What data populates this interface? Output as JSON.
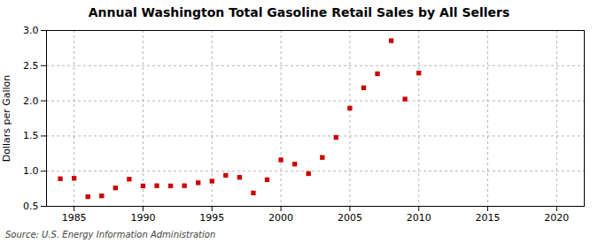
{
  "chart_data": {
    "type": "scatter",
    "title": "Annual Washington Total Gasoline Retail Sales by All Sellers",
    "ylabel": "Dollars per Gallon",
    "source": "Source: U.S. Energy Information Administration",
    "x": [
      1984,
      1985,
      1986,
      1987,
      1988,
      1989,
      1990,
      1991,
      1992,
      1993,
      1994,
      1995,
      1996,
      1997,
      1998,
      1999,
      2000,
      2001,
      2002,
      2003,
      2004,
      2005,
      2006,
      2007,
      2008,
      2009,
      2010
    ],
    "values": [
      0.893,
      0.899,
      0.637,
      0.649,
      0.762,
      0.886,
      0.79,
      0.793,
      0.79,
      0.793,
      0.835,
      0.858,
      0.94,
      0.912,
      0.69,
      0.879,
      1.16,
      1.1,
      0.965,
      1.195,
      1.48,
      1.895,
      2.185,
      2.385,
      2.855,
      2.025,
      2.395
    ],
    "color": "#cc0000",
    "marker": "square",
    "xlim": [
      1983,
      2022
    ],
    "ylim": [
      0.5,
      3.0
    ],
    "xticks": [
      1985,
      1990,
      1995,
      2000,
      2005,
      2010,
      2015,
      2020
    ],
    "yticks": [
      0.5,
      {
        "value": 1.0,
        "label": "1.0"
      },
      1.5,
      {
        "value": 2.0,
        "label": "2.0"
      },
      2.5,
      {
        "value": 3.0,
        "label": "3.0"
      }
    ],
    "grid": true
  }
}
